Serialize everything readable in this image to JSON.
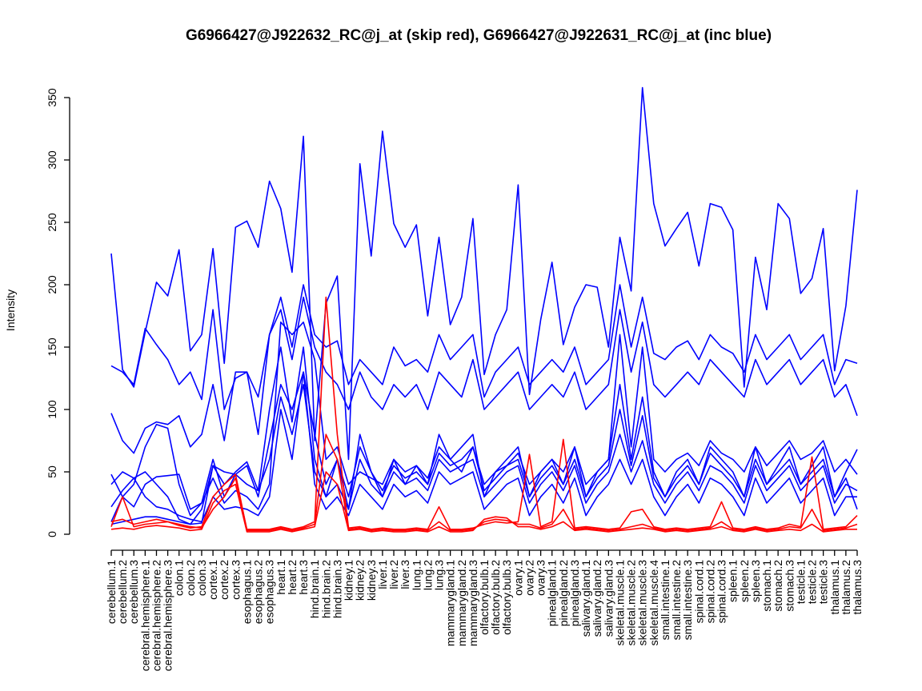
{
  "chart_data": {
    "type": "line",
    "title": "G6966427@J922632_RC@j_at (skip red), G6966427@J922631_RC@j_at (inc blue)",
    "xlabel": "",
    "ylabel": "Intensity",
    "ylim": [
      0,
      350
    ],
    "yticks": [
      0,
      50,
      100,
      150,
      200,
      250,
      300,
      350
    ],
    "grid": false,
    "legend": "none",
    "colors": {
      "skip": "#ff0000",
      "inc": "#0000ff"
    },
    "categories": [
      "cerebellum.1",
      "cerebellum.2",
      "cerebellum.3",
      "cerebral.hemisphere.1",
      "cerebral.hemisphere.2",
      "cerebral.hemisphere.3",
      "colon.1",
      "colon.2",
      "colon.3",
      "cortex.1",
      "cortex.2",
      "cortex.3",
      "esophagus.1",
      "esophagus.2",
      "esophagus.3",
      "heart.1",
      "heart.2",
      "heart.3",
      "hind.brain.1",
      "hind.brain.2",
      "hind.brain.3",
      "kidney.1",
      "kidney.2",
      "kidney.3",
      "liver.1",
      "liver.2",
      "liver.3",
      "lung.1",
      "lung.2",
      "lung.3",
      "mammarygland.1",
      "mammarygland.2",
      "mammarygland.3",
      "olfactory.bulb.1",
      "olfactory.bulb.2",
      "olfactory.bulb.3",
      "ovary.1",
      "ovary.2",
      "ovary.3",
      "pinealgland.1",
      "pinealgland.2",
      "pinealgland.3",
      "salivary.gland.1",
      "salivary.gland.2",
      "salivary.gland.3",
      "skeletal.muscle.1",
      "skeletal.muscle.2",
      "skeletal.muscle.3",
      "skeletal.muscle.4",
      "small.intestine.1",
      "small.intestine.2",
      "small.intestine.3",
      "spinal.cord.1",
      "spinal.cord.2",
      "spinal.cord.3",
      "spleen.1",
      "spleen.2",
      "spleen.3",
      "stomach.1",
      "stomach.2",
      "stomach.3",
      "testicle.1",
      "testicle.2",
      "testicle.3",
      "thalamus.1",
      "thalamus.2",
      "thalamus.3"
    ],
    "series": [
      {
        "group": "inc",
        "values": [
          225,
          132,
          118,
          162,
          202,
          191,
          228,
          147,
          160,
          229,
          137,
          246,
          251,
          230,
          283,
          261,
          210,
          319,
          75,
          185,
          207,
          60,
          297,
          223,
          323,
          249,
          230,
          248,
          175,
          238,
          168,
          190,
          253,
          128,
          160,
          180,
          280,
          112,
          172,
          218,
          152,
          182,
          200,
          198,
          150,
          238,
          195,
          358,
          265,
          231,
          245,
          258,
          215,
          265,
          262,
          244,
          118,
          222,
          180,
          265,
          253,
          193,
          205,
          245,
          131,
          183,
          276
        ]
      },
      {
        "group": "inc",
        "values": [
          135,
          130,
          120,
          165,
          152,
          140,
          120,
          130,
          108,
          180,
          100,
          125,
          130,
          110,
          160,
          190,
          150,
          200,
          160,
          150,
          155,
          120,
          140,
          130,
          120,
          150,
          135,
          140,
          130,
          160,
          140,
          150,
          160,
          110,
          130,
          140,
          150,
          120,
          130,
          140,
          130,
          150,
          120,
          130,
          140,
          200,
          150,
          190,
          145,
          140,
          150,
          155,
          140,
          160,
          150,
          145,
          130,
          160,
          140,
          150,
          160,
          140,
          150,
          160,
          120,
          140,
          137
        ]
      },
      {
        "group": "inc",
        "values": [
          97,
          75,
          65,
          85,
          90,
          88,
          95,
          70,
          80,
          120,
          75,
          130,
          130,
          80,
          160,
          180,
          140,
          190,
          150,
          130,
          120,
          100,
          130,
          110,
          100,
          120,
          110,
          120,
          100,
          130,
          120,
          110,
          140,
          100,
          110,
          120,
          130,
          100,
          110,
          120,
          110,
          130,
          100,
          110,
          120,
          180,
          130,
          170,
          120,
          110,
          120,
          130,
          120,
          140,
          130,
          120,
          110,
          140,
          120,
          130,
          140,
          120,
          130,
          140,
          110,
          120,
          95
        ]
      },
      {
        "group": "inc",
        "values": [
          48,
          30,
          22,
          40,
          46,
          47,
          48,
          20,
          25,
          45,
          25,
          35,
          30,
          20,
          40,
          170,
          160,
          170,
          140,
          60,
          70,
          40,
          50,
          45,
          40,
          60,
          50,
          55,
          45,
          70,
          60,
          50,
          70,
          40,
          50,
          55,
          65,
          40,
          50,
          60,
          50,
          70,
          40,
          50,
          60,
          160,
          70,
          150,
          60,
          50,
          60,
          65,
          55,
          75,
          65,
          60,
          50,
          70,
          55,
          65,
          75,
          60,
          65,
          75,
          50,
          60,
          48
        ]
      },
      {
        "group": "inc",
        "values": [
          22,
          35,
          45,
          50,
          40,
          30,
          12,
          8,
          20,
          55,
          40,
          50,
          58,
          35,
          100,
          150,
          90,
          150,
          60,
          30,
          60,
          20,
          80,
          50,
          30,
          60,
          40,
          55,
          40,
          80,
          60,
          70,
          80,
          30,
          50,
          60,
          70,
          30,
          50,
          60,
          40,
          70,
          30,
          50,
          60,
          120,
          60,
          110,
          50,
          30,
          50,
          60,
          40,
          70,
          60,
          50,
          30,
          70,
          40,
          55,
          70,
          40,
          55,
          70,
          30,
          50,
          68
        ]
      },
      {
        "group": "inc",
        "values": [
          10,
          30,
          40,
          70,
          88,
          85,
          40,
          15,
          25,
          60,
          30,
          48,
          55,
          30,
          75,
          120,
          100,
          130,
          80,
          40,
          60,
          30,
          70,
          50,
          35,
          55,
          45,
          50,
          40,
          65,
          55,
          60,
          70,
          35,
          45,
          55,
          60,
          30,
          45,
          55,
          40,
          60,
          30,
          45,
          55,
          100,
          55,
          95,
          45,
          30,
          45,
          55,
          40,
          65,
          55,
          45,
          30,
          60,
          40,
          50,
          60,
          40,
          50,
          60,
          30,
          45,
          20
        ]
      },
      {
        "group": "inc",
        "values": [
          8,
          10,
          12,
          14,
          14,
          12,
          10,
          8,
          9,
          55,
          50,
          48,
          40,
          35,
          60,
          110,
          80,
          120,
          50,
          30,
          40,
          20,
          60,
          40,
          30,
          50,
          40,
          45,
          35,
          60,
          50,
          55,
          60,
          30,
          40,
          50,
          55,
          25,
          40,
          50,
          35,
          55,
          25,
          40,
          50,
          80,
          50,
          75,
          40,
          25,
          40,
          50,
          35,
          55,
          50,
          40,
          25,
          55,
          35,
          45,
          55,
          35,
          45,
          55,
          25,
          40,
          35
        ]
      },
      {
        "group": "inc",
        "values": [
          40,
          50,
          45,
          30,
          22,
          20,
          15,
          12,
          10,
          30,
          20,
          22,
          20,
          15,
          30,
          100,
          60,
          130,
          40,
          20,
          30,
          15,
          40,
          30,
          20,
          40,
          30,
          35,
          25,
          50,
          40,
          45,
          50,
          20,
          30,
          40,
          45,
          15,
          30,
          40,
          25,
          45,
          15,
          30,
          40,
          60,
          40,
          60,
          30,
          15,
          30,
          40,
          25,
          45,
          40,
          30,
          15,
          45,
          25,
          35,
          45,
          25,
          35,
          45,
          15,
          30,
          30
        ]
      }
    ],
    "series_skip": [
      {
        "group": "skip",
        "values": [
          10,
          12,
          8,
          10,
          12,
          10,
          8,
          6,
          5,
          20,
          30,
          45,
          4,
          4,
          4,
          6,
          4,
          6,
          10,
          190,
          80,
          5,
          6,
          4,
          5,
          4,
          4,
          5,
          4,
          22,
          4,
          4,
          5,
          8,
          10,
          9,
          10,
          64,
          6,
          10,
          76,
          5,
          6,
          5,
          4,
          5,
          18,
          20,
          6,
          4,
          5,
          4,
          5,
          6,
          26,
          5,
          4,
          6,
          4,
          5,
          8,
          6,
          62,
          4,
          5,
          6,
          15
        ]
      },
      {
        "group": "skip",
        "values": [
          6,
          30,
          6,
          8,
          9,
          10,
          7,
          5,
          6,
          30,
          40,
          48,
          3,
          3,
          3,
          5,
          3,
          5,
          8,
          80,
          60,
          4,
          5,
          3,
          4,
          3,
          3,
          4,
          3,
          10,
          3,
          3,
          4,
          10,
          12,
          11,
          8,
          8,
          5,
          8,
          20,
          4,
          5,
          4,
          3,
          4,
          6,
          8,
          5,
          3,
          4,
          3,
          4,
          5,
          10,
          4,
          3,
          5,
          3,
          4,
          6,
          5,
          20,
          3,
          4,
          5,
          8
        ]
      },
      {
        "group": "skip",
        "values": [
          4,
          5,
          4,
          6,
          7,
          6,
          5,
          3,
          4,
          25,
          35,
          40,
          2,
          2,
          2,
          4,
          2,
          4,
          6,
          50,
          40,
          3,
          4,
          2,
          3,
          2,
          2,
          3,
          2,
          6,
          2,
          2,
          3,
          12,
          14,
          13,
          6,
          6,
          4,
          6,
          10,
          3,
          4,
          3,
          2,
          3,
          4,
          5,
          4,
          2,
          3,
          2,
          3,
          4,
          6,
          3,
          2,
          4,
          2,
          3,
          4,
          3,
          8,
          2,
          3,
          4,
          4
        ]
      }
    ]
  }
}
